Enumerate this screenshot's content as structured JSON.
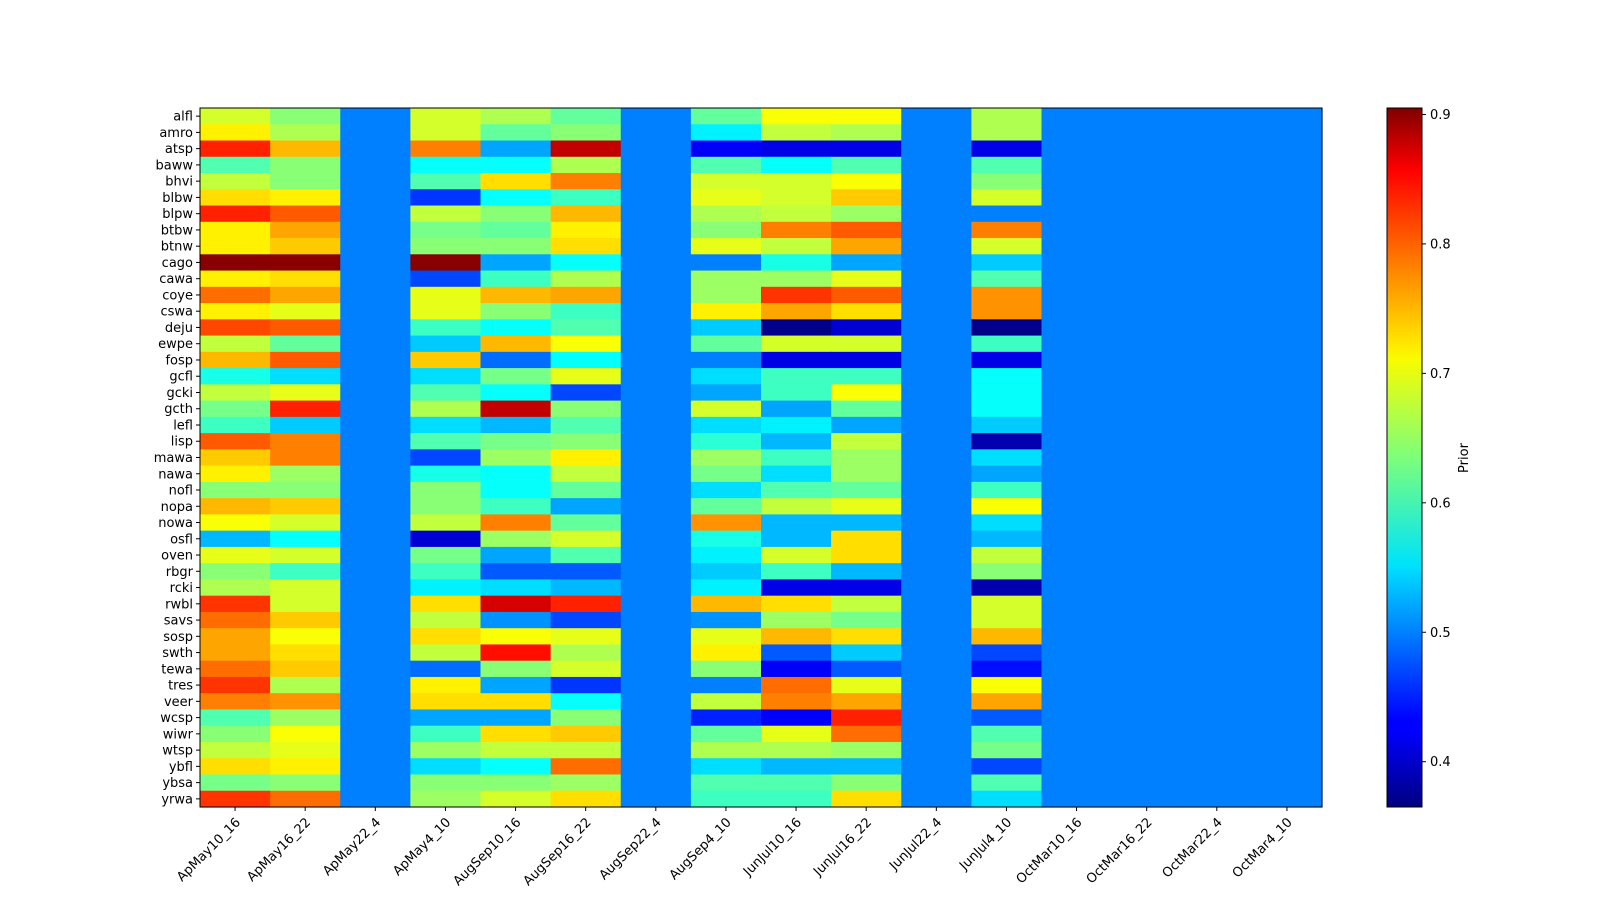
{
  "chart_data": {
    "type": "heatmap",
    "title": "",
    "xlabel": "",
    "ylabel": "",
    "colormap": "jet",
    "colorbar": {
      "label": "Prior",
      "vmin": 0.365,
      "vmax": 0.905,
      "ticks": [
        0.4,
        0.5,
        0.6,
        0.7,
        0.8,
        0.9
      ],
      "tick_labels": [
        "0.4",
        "0.5",
        "0.6",
        "0.7",
        "0.8",
        "0.9"
      ]
    },
    "columns": [
      "ApMay10_16",
      "ApMay16_22",
      "ApMay22_4",
      "ApMay4_10",
      "AugSep10_16",
      "AugSep16_22",
      "AugSep22_4",
      "AugSep4_10",
      "JunJul10_16",
      "JunJul16_22",
      "JunJul22_4",
      "JunJul4_10",
      "OctMar10_16",
      "OctMar16_22",
      "OctMar22_4",
      "OctMar4_10"
    ],
    "rows": [
      "alfl",
      "amro",
      "atsp",
      "baww",
      "bhvi",
      "blbw",
      "blpw",
      "btbw",
      "btnw",
      "cago",
      "cawa",
      "coye",
      "cswa",
      "deju",
      "ewpe",
      "fosp",
      "gcfl",
      "gcki",
      "gcth",
      "lefl",
      "lisp",
      "mawa",
      "nawa",
      "nofl",
      "nopa",
      "nowa",
      "osfl",
      "oven",
      "rbgr",
      "rcki",
      "rwbl",
      "savs",
      "sosp",
      "swth",
      "tewa",
      "tres",
      "veer",
      "wcsp",
      "wiwr",
      "wtsp",
      "ybfl",
      "ybsa",
      "yrwa"
    ],
    "values": [
      [
        0.68,
        0.64,
        0.5,
        0.68,
        0.66,
        0.62,
        0.5,
        0.62,
        0.7,
        0.7,
        0.5,
        0.66,
        0.5,
        0.5,
        0.5,
        0.5
      ],
      [
        0.71,
        0.66,
        0.5,
        0.68,
        0.62,
        0.64,
        0.5,
        0.56,
        0.67,
        0.66,
        0.5,
        0.66,
        0.5,
        0.5,
        0.5,
        0.5
      ],
      [
        0.82,
        0.74,
        0.5,
        0.77,
        0.52,
        0.87,
        0.5,
        0.43,
        0.42,
        0.42,
        0.5,
        0.42,
        0.5,
        0.5,
        0.5,
        0.5
      ],
      [
        0.61,
        0.64,
        0.5,
        0.57,
        0.57,
        0.66,
        0.5,
        0.61,
        0.57,
        0.61,
        0.5,
        0.61,
        0.5,
        0.5,
        0.5,
        0.5
      ],
      [
        0.67,
        0.64,
        0.5,
        0.61,
        0.72,
        0.77,
        0.5,
        0.68,
        0.68,
        0.7,
        0.5,
        0.64,
        0.5,
        0.5,
        0.5,
        0.5
      ],
      [
        0.72,
        0.71,
        0.5,
        0.46,
        0.57,
        0.6,
        0.5,
        0.69,
        0.68,
        0.73,
        0.5,
        0.68,
        0.5,
        0.5,
        0.5,
        0.5
      ],
      [
        0.82,
        0.79,
        0.5,
        0.67,
        0.64,
        0.74,
        0.5,
        0.66,
        0.67,
        0.65,
        0.5,
        0.5,
        0.5,
        0.5,
        0.5,
        0.5
      ],
      [
        0.71,
        0.75,
        0.5,
        0.63,
        0.62,
        0.71,
        0.5,
        0.64,
        0.77,
        0.79,
        0.5,
        0.77,
        0.5,
        0.5,
        0.5,
        0.5
      ],
      [
        0.71,
        0.73,
        0.5,
        0.64,
        0.64,
        0.72,
        0.5,
        0.69,
        0.67,
        0.75,
        0.5,
        0.68,
        0.5,
        0.5,
        0.5,
        0.5
      ],
      [
        0.9,
        0.9,
        0.5,
        0.9,
        0.52,
        0.57,
        0.5,
        0.5,
        0.58,
        0.52,
        0.5,
        0.54,
        0.5,
        0.5,
        0.5,
        0.5
      ],
      [
        0.71,
        0.72,
        0.5,
        0.47,
        0.6,
        0.66,
        0.5,
        0.65,
        0.65,
        0.69,
        0.5,
        0.61,
        0.5,
        0.5,
        0.5,
        0.5
      ],
      [
        0.78,
        0.75,
        0.5,
        0.69,
        0.74,
        0.75,
        0.5,
        0.65,
        0.81,
        0.79,
        0.5,
        0.76,
        0.5,
        0.5,
        0.5,
        0.5
      ],
      [
        0.71,
        0.69,
        0.5,
        0.69,
        0.64,
        0.6,
        0.5,
        0.71,
        0.75,
        0.72,
        0.5,
        0.76,
        0.5,
        0.5,
        0.5,
        0.5
      ],
      [
        0.8,
        0.79,
        0.5,
        0.6,
        0.57,
        0.61,
        0.5,
        0.54,
        0.37,
        0.41,
        0.5,
        0.37,
        0.5,
        0.5,
        0.5,
        0.5
      ],
      [
        0.67,
        0.62,
        0.5,
        0.54,
        0.74,
        0.7,
        0.5,
        0.62,
        0.68,
        0.68,
        0.5,
        0.6,
        0.5,
        0.5,
        0.5,
        0.5
      ],
      [
        0.74,
        0.79,
        0.5,
        0.73,
        0.49,
        0.57,
        0.5,
        0.5,
        0.42,
        0.42,
        0.5,
        0.42,
        0.5,
        0.5,
        0.5,
        0.5
      ],
      [
        0.58,
        0.55,
        0.5,
        0.55,
        0.63,
        0.69,
        0.5,
        0.55,
        0.6,
        0.6,
        0.5,
        0.57,
        0.5,
        0.5,
        0.5,
        0.5
      ],
      [
        0.67,
        0.69,
        0.5,
        0.61,
        0.57,
        0.47,
        0.5,
        0.52,
        0.6,
        0.7,
        0.5,
        0.57,
        0.5,
        0.5,
        0.5,
        0.5
      ],
      [
        0.63,
        0.82,
        0.5,
        0.66,
        0.87,
        0.64,
        0.5,
        0.68,
        0.52,
        0.62,
        0.5,
        0.57,
        0.5,
        0.5,
        0.5,
        0.5
      ],
      [
        0.6,
        0.54,
        0.5,
        0.55,
        0.53,
        0.61,
        0.5,
        0.55,
        0.56,
        0.52,
        0.5,
        0.54,
        0.5,
        0.5,
        0.5,
        0.5
      ],
      [
        0.79,
        0.77,
        0.5,
        0.61,
        0.63,
        0.64,
        0.5,
        0.59,
        0.53,
        0.67,
        0.5,
        0.39,
        0.5,
        0.5,
        0.5,
        0.5
      ],
      [
        0.73,
        0.77,
        0.5,
        0.47,
        0.65,
        0.71,
        0.5,
        0.65,
        0.6,
        0.65,
        0.5,
        0.55,
        0.5,
        0.5,
        0.5,
        0.5
      ],
      [
        0.71,
        0.65,
        0.5,
        0.58,
        0.57,
        0.67,
        0.5,
        0.63,
        0.55,
        0.65,
        0.5,
        0.52,
        0.5,
        0.5,
        0.5,
        0.5
      ],
      [
        0.64,
        0.64,
        0.5,
        0.64,
        0.57,
        0.62,
        0.5,
        0.55,
        0.61,
        0.62,
        0.5,
        0.6,
        0.5,
        0.5,
        0.5,
        0.5
      ],
      [
        0.74,
        0.73,
        0.5,
        0.64,
        0.6,
        0.52,
        0.5,
        0.62,
        0.67,
        0.69,
        0.5,
        0.7,
        0.5,
        0.5,
        0.5,
        0.5
      ],
      [
        0.7,
        0.68,
        0.5,
        0.67,
        0.77,
        0.62,
        0.5,
        0.76,
        0.53,
        0.53,
        0.5,
        0.55,
        0.5,
        0.5,
        0.5,
        0.5
      ],
      [
        0.53,
        0.57,
        0.5,
        0.41,
        0.65,
        0.68,
        0.5,
        0.58,
        0.53,
        0.72,
        0.5,
        0.53,
        0.5,
        0.5,
        0.5,
        0.5
      ],
      [
        0.69,
        0.68,
        0.5,
        0.63,
        0.52,
        0.61,
        0.5,
        0.56,
        0.68,
        0.72,
        0.5,
        0.67,
        0.5,
        0.5,
        0.5,
        0.5
      ],
      [
        0.64,
        0.6,
        0.5,
        0.6,
        0.48,
        0.48,
        0.5,
        0.54,
        0.6,
        0.53,
        0.5,
        0.64,
        0.5,
        0.5,
        0.5,
        0.5
      ],
      [
        0.66,
        0.68,
        0.5,
        0.56,
        0.55,
        0.53,
        0.5,
        0.56,
        0.42,
        0.42,
        0.5,
        0.39,
        0.5,
        0.5,
        0.5,
        0.5
      ],
      [
        0.81,
        0.68,
        0.5,
        0.72,
        0.86,
        0.82,
        0.5,
        0.74,
        0.72,
        0.67,
        0.5,
        0.68,
        0.5,
        0.5,
        0.5,
        0.5
      ],
      [
        0.78,
        0.73,
        0.5,
        0.67,
        0.51,
        0.47,
        0.5,
        0.51,
        0.65,
        0.63,
        0.5,
        0.68,
        0.5,
        0.5,
        0.5,
        0.5
      ],
      [
        0.75,
        0.7,
        0.5,
        0.72,
        0.7,
        0.69,
        0.5,
        0.69,
        0.74,
        0.72,
        0.5,
        0.74,
        0.5,
        0.5,
        0.5,
        0.5
      ],
      [
        0.75,
        0.72,
        0.5,
        0.67,
        0.83,
        0.66,
        0.5,
        0.71,
        0.48,
        0.54,
        0.5,
        0.47,
        0.5,
        0.5,
        0.5,
        0.5
      ],
      [
        0.78,
        0.73,
        0.5,
        0.49,
        0.64,
        0.68,
        0.5,
        0.64,
        0.43,
        0.48,
        0.5,
        0.44,
        0.5,
        0.5,
        0.5,
        0.5
      ],
      [
        0.81,
        0.66,
        0.5,
        0.71,
        0.52,
        0.46,
        0.5,
        0.5,
        0.78,
        0.69,
        0.5,
        0.7,
        0.5,
        0.5,
        0.5,
        0.5
      ],
      [
        0.77,
        0.76,
        0.5,
        0.72,
        0.72,
        0.57,
        0.5,
        0.67,
        0.77,
        0.75,
        0.5,
        0.75,
        0.5,
        0.5,
        0.5,
        0.5
      ],
      [
        0.61,
        0.65,
        0.5,
        0.52,
        0.52,
        0.64,
        0.5,
        0.45,
        0.43,
        0.82,
        0.5,
        0.48,
        0.5,
        0.5,
        0.5,
        0.5
      ],
      [
        0.64,
        0.7,
        0.5,
        0.6,
        0.72,
        0.73,
        0.5,
        0.62,
        0.69,
        0.78,
        0.5,
        0.61,
        0.5,
        0.5,
        0.5,
        0.5
      ],
      [
        0.67,
        0.69,
        0.5,
        0.65,
        0.67,
        0.67,
        0.5,
        0.66,
        0.66,
        0.65,
        0.5,
        0.63,
        0.5,
        0.5,
        0.5,
        0.5
      ],
      [
        0.72,
        0.71,
        0.5,
        0.55,
        0.57,
        0.78,
        0.5,
        0.55,
        0.53,
        0.53,
        0.5,
        0.47,
        0.5,
        0.5,
        0.5,
        0.5
      ],
      [
        0.63,
        0.64,
        0.5,
        0.64,
        0.64,
        0.65,
        0.5,
        0.61,
        0.61,
        0.64,
        0.5,
        0.61,
        0.5,
        0.5,
        0.5,
        0.5
      ],
      [
        0.81,
        0.78,
        0.5,
        0.65,
        0.68,
        0.72,
        0.5,
        0.6,
        0.6,
        0.72,
        0.5,
        0.55,
        0.5,
        0.5,
        0.5,
        0.5
      ]
    ]
  }
}
